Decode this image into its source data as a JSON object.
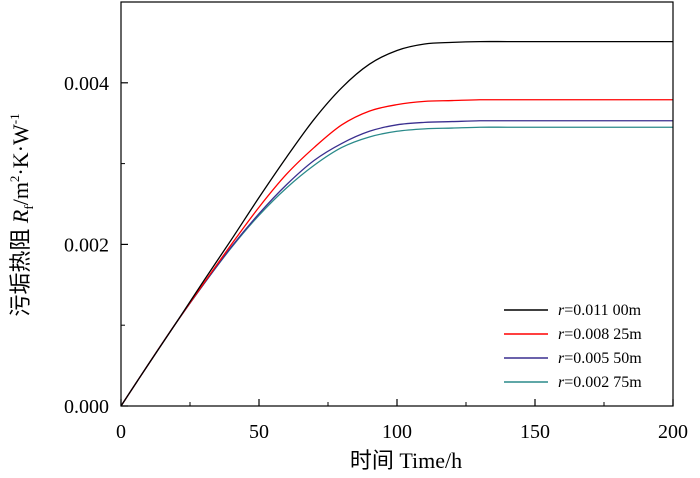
{
  "chart_data": {
    "type": "line",
    "xlabel": "时间  Time/h",
    "ylabel": {
      "prefix": "污垢热阻 ",
      "symbol": "R",
      "subscript": "f",
      "unit_a": "/m",
      "sup_a": "2",
      "unit_b": "·K·W",
      "sup_b": "-1"
    },
    "xlim": [
      0,
      200
    ],
    "ylim": [
      0,
      0.005
    ],
    "xticks": [
      0,
      50,
      100,
      150,
      200
    ],
    "xtick_labels": [
      "0",
      "50",
      "100",
      "150",
      "200"
    ],
    "yticks": [
      0,
      0.002,
      0.004
    ],
    "ytick_labels": [
      "0.000",
      "0.002",
      "0.004"
    ],
    "grid": false,
    "legend_position": "bottom-right",
    "series": [
      {
        "label_prefix": "r",
        "label_value": "=0.011 00m",
        "color": "#000000",
        "x": [
          0,
          10,
          20,
          30,
          40,
          50,
          60,
          70,
          80,
          90,
          100,
          110,
          120,
          130,
          140,
          150,
          160,
          170,
          180,
          190,
          200
        ],
        "y": [
          0,
          0.00052,
          0.00103,
          0.00155,
          0.00206,
          0.00258,
          0.00308,
          0.00355,
          0.00394,
          0.00423,
          0.0044,
          0.00448,
          0.0045,
          0.00451,
          0.00451,
          0.00451,
          0.00451,
          0.00451,
          0.00451,
          0.00451,
          0.00451
        ]
      },
      {
        "label_prefix": "r",
        "label_value": "=0.008 25m",
        "color": "#ff0000",
        "x": [
          0,
          10,
          20,
          30,
          40,
          50,
          60,
          70,
          80,
          90,
          100,
          110,
          120,
          130,
          140,
          150,
          160,
          170,
          180,
          190,
          200
        ],
        "y": [
          0,
          0.00052,
          0.00103,
          0.00152,
          0.002,
          0.00246,
          0.00287,
          0.0032,
          0.00348,
          0.00365,
          0.00373,
          0.00377,
          0.00378,
          0.00379,
          0.00379,
          0.00379,
          0.00379,
          0.00379,
          0.00379,
          0.00379,
          0.00379
        ]
      },
      {
        "label_prefix": "r",
        "label_value": "=0.005 50m",
        "color": "#3a2f8f",
        "x": [
          0,
          10,
          20,
          30,
          40,
          50,
          60,
          70,
          80,
          90,
          100,
          110,
          120,
          130,
          140,
          150,
          160,
          170,
          180,
          190,
          200
        ],
        "y": [
          0,
          0.00052,
          0.00103,
          0.00151,
          0.00197,
          0.00238,
          0.00274,
          0.00304,
          0.00325,
          0.0034,
          0.00348,
          0.00351,
          0.00352,
          0.00353,
          0.00353,
          0.00353,
          0.00353,
          0.00353,
          0.00353,
          0.00353,
          0.00353
        ]
      },
      {
        "label_prefix": "r",
        "label_value": "=0.002 75m",
        "color": "#2a8a8a",
        "x": [
          0,
          10,
          20,
          30,
          40,
          50,
          60,
          70,
          80,
          90,
          100,
          110,
          120,
          130,
          140,
          150,
          160,
          170,
          180,
          190,
          200
        ],
        "y": [
          0,
          0.00052,
          0.00103,
          0.00151,
          0.00196,
          0.00236,
          0.0027,
          0.00298,
          0.0032,
          0.00333,
          0.0034,
          0.00343,
          0.00344,
          0.00345,
          0.00345,
          0.00345,
          0.00345,
          0.00345,
          0.00345,
          0.00345,
          0.00345
        ]
      }
    ]
  }
}
